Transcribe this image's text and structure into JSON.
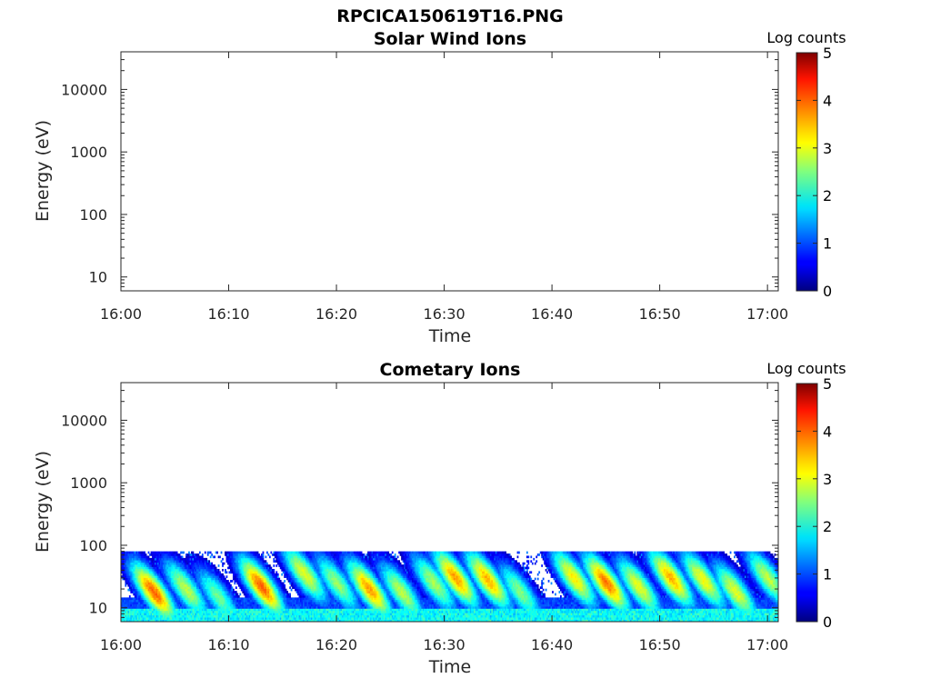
{
  "figure": {
    "title": "RPCICA150619T16.PNG"
  },
  "chart_data": [
    {
      "type": "heatmap",
      "title": "Solar Wind Ions",
      "xlabel": "Time",
      "ylabel": "Energy (eV)",
      "x_ticks": [
        "16:00",
        "16:10",
        "16:20",
        "16:30",
        "16:40",
        "16:50",
        "17:00"
      ],
      "x_range": [
        "16:00",
        "17:01"
      ],
      "y_scale": "log",
      "y_ticks": [
        "10",
        "100",
        "1000",
        "10000"
      ],
      "y_range": [
        6,
        40000
      ],
      "colorbar": {
        "label": "Log counts",
        "ticks": [
          "0",
          "1",
          "2",
          "3",
          "4",
          "5"
        ],
        "range": [
          0,
          5
        ],
        "colormap": "jet"
      },
      "data": []
    },
    {
      "type": "heatmap",
      "title": "Cometary Ions",
      "xlabel": "Time",
      "ylabel": "Energy (eV)",
      "x_ticks": [
        "16:00",
        "16:10",
        "16:20",
        "16:30",
        "16:40",
        "16:50",
        "17:00"
      ],
      "x_range": [
        "16:00",
        "17:01"
      ],
      "y_scale": "log",
      "y_ticks": [
        "10",
        "100",
        "1000",
        "10000"
      ],
      "y_range": [
        6,
        40000
      ],
      "colorbar": {
        "label": "Log counts",
        "ticks": [
          "0",
          "1",
          "2",
          "3",
          "4",
          "5"
        ],
        "range": [
          0,
          5
        ],
        "colormap": "jet"
      },
      "energy_range_observed_eV": [
        6,
        80
      ],
      "bursts": [
        {
          "time": "16:03",
          "peak_energy_eV": 18,
          "peak_log_counts": 3.9
        },
        {
          "time": "16:06",
          "peak_energy_eV": 20,
          "peak_log_counts": 2.8
        },
        {
          "time": "16:09",
          "peak_energy_eV": 15,
          "peak_log_counts": 2.4
        },
        {
          "time": "16:13",
          "peak_energy_eV": 22,
          "peak_log_counts": 3.9
        },
        {
          "time": "16:17",
          "peak_energy_eV": 35,
          "peak_log_counts": 3.0
        },
        {
          "time": "16:20",
          "peak_energy_eV": 25,
          "peak_log_counts": 2.6
        },
        {
          "time": "16:23",
          "peak_energy_eV": 20,
          "peak_log_counts": 3.6
        },
        {
          "time": "16:26",
          "peak_energy_eV": 18,
          "peak_log_counts": 2.8
        },
        {
          "time": "16:29",
          "peak_energy_eV": 25,
          "peak_log_counts": 2.7
        },
        {
          "time": "16:31",
          "peak_energy_eV": 30,
          "peak_log_counts": 3.6
        },
        {
          "time": "16:34",
          "peak_energy_eV": 28,
          "peak_log_counts": 3.5
        },
        {
          "time": "16:37",
          "peak_energy_eV": 18,
          "peak_log_counts": 2.5
        },
        {
          "time": "16:42",
          "peak_energy_eV": 30,
          "peak_log_counts": 3.2
        },
        {
          "time": "16:45",
          "peak_energy_eV": 25,
          "peak_log_counts": 3.8
        },
        {
          "time": "16:48",
          "peak_energy_eV": 22,
          "peak_log_counts": 3.0
        },
        {
          "time": "16:51",
          "peak_energy_eV": 30,
          "peak_log_counts": 3.5
        },
        {
          "time": "16:54",
          "peak_energy_eV": 28,
          "peak_log_counts": 3.1
        },
        {
          "time": "16:57",
          "peak_energy_eV": 18,
          "peak_log_counts": 3.0
        },
        {
          "time": "17:00",
          "peak_energy_eV": 30,
          "peak_log_counts": 2.8
        }
      ]
    }
  ]
}
